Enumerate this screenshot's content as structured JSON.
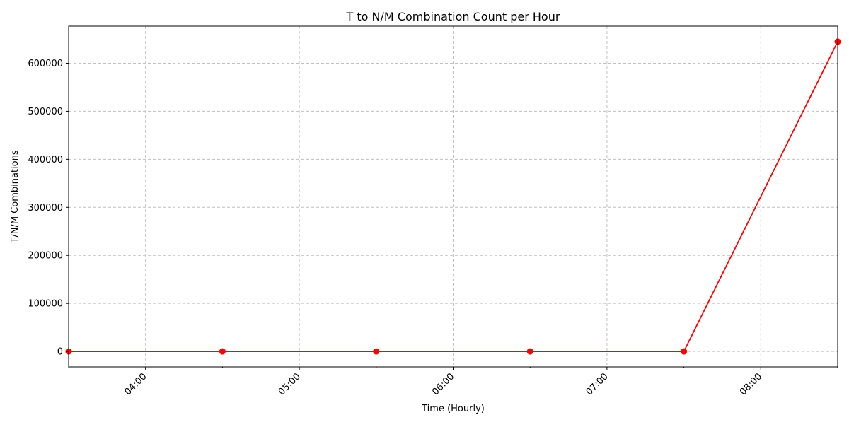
{
  "chart_data": {
    "type": "line",
    "title": "T to N/M Combination Count per Hour",
    "xlabel": "Time (Hourly)",
    "ylabel": "T/N/M Combinations",
    "x": [
      "03:30",
      "04:30",
      "05:30",
      "06:30",
      "07:30",
      "08:30"
    ],
    "series": [
      {
        "values": [
          0,
          0,
          0,
          0,
          0,
          645000
        ],
        "color": "#ff0000",
        "marker": "circle"
      }
    ],
    "x_ticks": [
      "04:00",
      "05:00",
      "06:00",
      "07:00",
      "08:00"
    ],
    "y_ticks": [
      0,
      100000,
      200000,
      300000,
      400000,
      500000,
      600000
    ],
    "xlim": [
      "03:30",
      "08:30"
    ],
    "ylim": [
      -32250,
      677250
    ],
    "grid": true,
    "grid_style": "dashed",
    "grid_color": "#c0c0c0"
  }
}
